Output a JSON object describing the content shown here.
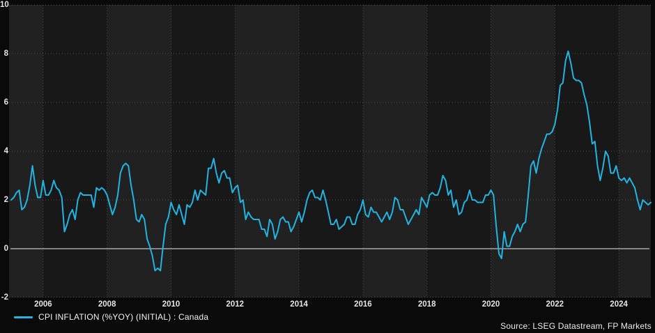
{
  "legend": {
    "label": "CPI INFLATION (%YOY) (INITIAL) : Canada"
  },
  "source": {
    "text": "Source: LSEG Datastream, FP Markets"
  },
  "colors": {
    "line": "#23b4e2",
    "background": "#0a0a0a",
    "band_light": "#212121",
    "band_dark": "#181818",
    "grid": "#4e4e4e",
    "zero_line": "#a8a8a8",
    "text": "#e4e4e4"
  },
  "chart_data": {
    "type": "line",
    "title": "",
    "xlabel": "",
    "ylabel": "",
    "frequency": "monthly",
    "start": "2005-01",
    "end": "2025-01",
    "xlim": [
      2005.0,
      2025.05
    ],
    "ylim": [
      -2,
      10
    ],
    "y_ticks": [
      10,
      8,
      6,
      4,
      2,
      0,
      -2
    ],
    "x_ticks": [
      2006,
      2008,
      2010,
      2012,
      2014,
      2016,
      2018,
      2020,
      2022,
      2024
    ],
    "grid": "dotted",
    "zero_line": true,
    "legend_position": "bottom-left",
    "series": [
      {
        "name": "CPI INFLATION (%YOY) (INITIAL) : Canada",
        "color": "#23b4e2",
        "values": [
          2.0,
          2.1,
          2.3,
          2.4,
          1.6,
          1.7,
          2.0,
          2.6,
          3.4,
          2.6,
          2.1,
          2.1,
          2.8,
          2.2,
          2.2,
          2.4,
          2.8,
          2.5,
          2.4,
          2.1,
          0.7,
          1.0,
          1.4,
          1.6,
          1.2,
          2.0,
          2.3,
          2.2,
          2.2,
          2.2,
          2.2,
          1.7,
          2.5,
          2.4,
          2.5,
          2.4,
          2.2,
          1.8,
          1.4,
          1.7,
          2.2,
          3.1,
          3.4,
          3.5,
          3.4,
          2.6,
          2.0,
          1.2,
          1.1,
          1.4,
          1.2,
          0.4,
          0.1,
          -0.3,
          -0.9,
          -0.8,
          -0.9,
          0.1,
          1.0,
          1.3,
          1.9,
          1.6,
          1.4,
          1.8,
          1.4,
          1.0,
          1.8,
          1.7,
          1.9,
          2.4,
          2.0,
          2.4,
          2.3,
          2.2,
          3.3,
          3.3,
          3.7,
          3.1,
          2.7,
          3.1,
          3.2,
          2.9,
          2.9,
          2.3,
          2.5,
          2.6,
          1.9,
          2.0,
          1.2,
          1.5,
          1.3,
          1.2,
          1.2,
          1.2,
          0.8,
          0.8,
          0.5,
          1.2,
          1.0,
          0.4,
          0.7,
          1.2,
          1.3,
          1.1,
          1.1,
          0.7,
          0.9,
          1.2,
          1.5,
          1.1,
          1.5,
          2.0,
          2.3,
          2.4,
          2.1,
          2.1,
          2.0,
          2.4,
          2.0,
          1.5,
          1.0,
          1.0,
          1.2,
          0.8,
          0.9,
          1.0,
          1.3,
          1.3,
          1.0,
          1.0,
          1.4,
          1.6,
          2.0,
          1.4,
          1.3,
          1.7,
          1.5,
          1.5,
          1.3,
          1.1,
          1.3,
          1.5,
          1.2,
          1.5,
          2.1,
          2.0,
          1.6,
          1.6,
          1.3,
          1.0,
          1.2,
          1.4,
          1.6,
          1.4,
          2.1,
          1.9,
          1.7,
          2.2,
          2.3,
          2.2,
          2.2,
          2.5,
          3.0,
          2.8,
          2.2,
          2.4,
          1.7,
          2.0,
          1.4,
          1.5,
          1.9,
          2.0,
          2.4,
          2.0,
          2.0,
          1.9,
          1.9,
          1.9,
          2.2,
          2.2,
          2.4,
          2.2,
          0.9,
          -0.2,
          -0.4,
          0.7,
          0.1,
          0.1,
          0.5,
          0.7,
          1.0,
          0.7,
          1.0,
          1.1,
          2.2,
          3.4,
          3.6,
          3.1,
          3.7,
          4.1,
          4.4,
          4.7,
          4.7,
          4.8,
          5.1,
          5.7,
          6.7,
          6.8,
          7.7,
          8.1,
          7.6,
          7.0,
          6.9,
          6.9,
          6.8,
          6.3,
          5.9,
          5.2,
          4.3,
          4.4,
          3.4,
          2.8,
          3.3,
          4.0,
          3.8,
          3.1,
          3.1,
          3.4,
          2.9,
          2.8,
          2.9,
          2.7,
          2.9,
          2.7,
          2.5,
          2.0,
          1.6,
          2.0,
          1.9,
          1.8,
          1.9
        ]
      }
    ]
  }
}
